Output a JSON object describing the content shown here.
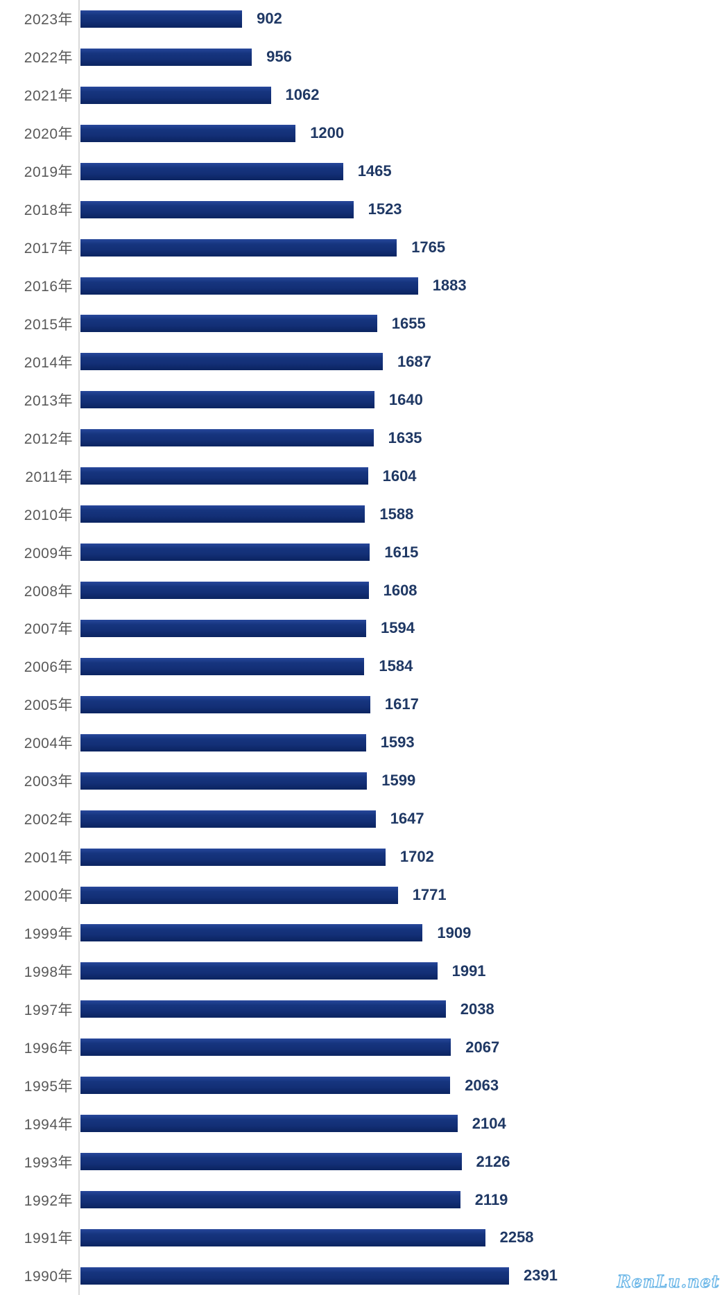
{
  "chart_data": {
    "type": "bar",
    "orientation": "horizontal",
    "title": "",
    "xlabel": "",
    "ylabel": "",
    "grid": false,
    "legend": null,
    "xlim": [
      0,
      2391
    ],
    "categories": [
      "2023年",
      "2022年",
      "2021年",
      "2020年",
      "2019年",
      "2018年",
      "2017年",
      "2016年",
      "2015年",
      "2014年",
      "2013年",
      "2012年",
      "2011年",
      "2010年",
      "2009年",
      "2008年",
      "2007年",
      "2006年",
      "2005年",
      "2004年",
      "2003年",
      "2002年",
      "2001年",
      "2000年",
      "1999年",
      "1998年",
      "1997年",
      "1996年",
      "1995年",
      "1994年",
      "1993年",
      "1992年",
      "1991年",
      "1990年"
    ],
    "values": [
      902,
      956,
      1062,
      1200,
      1465,
      1523,
      1765,
      1883,
      1655,
      1687,
      1640,
      1635,
      1604,
      1588,
      1615,
      1608,
      1594,
      1584,
      1617,
      1593,
      1599,
      1647,
      1702,
      1771,
      1909,
      1991,
      2038,
      2067,
      2063,
      2104,
      2126,
      2119,
      2258,
      2391
    ],
    "colors": {
      "bar": "#132f76",
      "value_label": "#1f3864",
      "category_label": "#595959",
      "axis_line": "#d9d9d9",
      "background": "#ffffff"
    }
  },
  "watermark": {
    "text": "RenLu.net",
    "color": "#5fb0e5"
  }
}
